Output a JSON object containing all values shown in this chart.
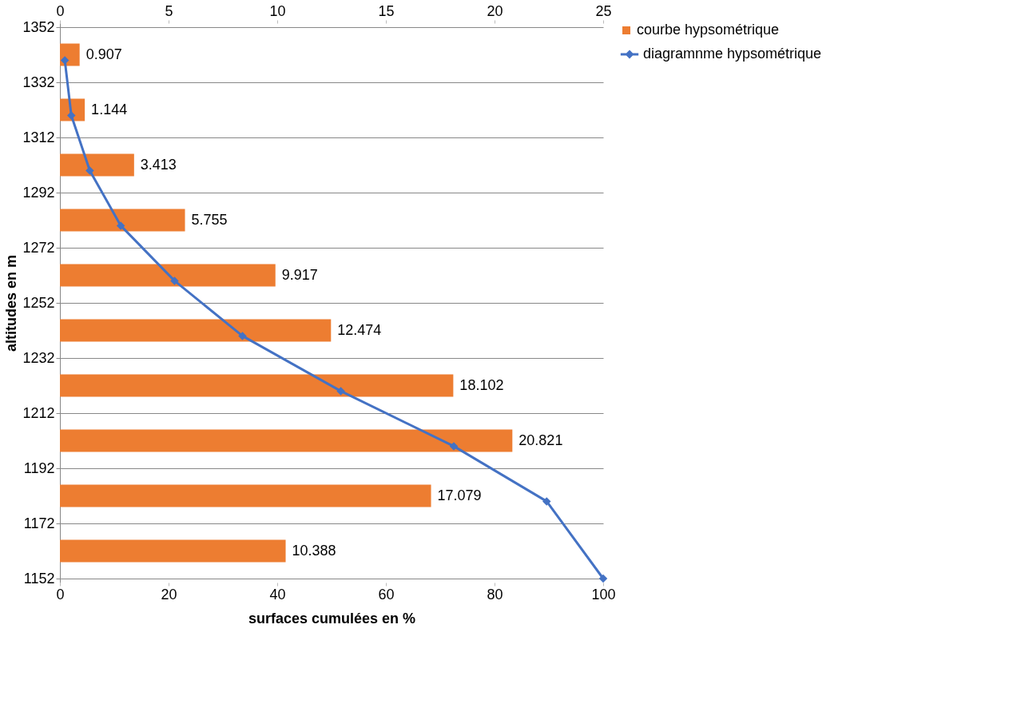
{
  "chart_data": {
    "type": "bar",
    "orientation": "horizontal",
    "xlabel": "surfaces cumulées en %",
    "ylabel": "altitudes en m",
    "series": [
      {
        "name": "courbe hypsométrique",
        "axis": "x2",
        "color": "#ed7d31",
        "x": [
          1342,
          1322,
          1302,
          1282,
          1262,
          1242,
          1222,
          1202,
          1182,
          1162
        ],
        "values": [
          0.907,
          1.144,
          3.413,
          5.755,
          9.917,
          12.474,
          18.102,
          20.821,
          17.079,
          10.388
        ],
        "value_labels": [
          "0.907",
          "1.144",
          "3.413",
          "5.755",
          "9.917",
          "12.474",
          "18.102",
          "20.821",
          "17.079",
          "10.388"
        ]
      },
      {
        "name": "diagramnme hypsométrique",
        "type": "line",
        "color": "#4472c4",
        "marker": "diamond",
        "x": [
          1340,
          1320,
          1300,
          1280,
          1260,
          1240,
          1220,
          1200,
          1180,
          1152
        ],
        "values": [
          0.9,
          2.1,
          5.5,
          11.2,
          21.1,
          33.6,
          51.7,
          72.5,
          89.6,
          100
        ]
      }
    ],
    "x2lim": [
      0,
      25
    ],
    "x2ticks": [
      0,
      5,
      10,
      15,
      20,
      25
    ],
    "xlim": [
      0,
      100
    ],
    "xticks": [
      0,
      20,
      40,
      60,
      80,
      100
    ],
    "ylim": [
      1152,
      1352
    ],
    "yticks": [
      1152,
      1172,
      1192,
      1212,
      1232,
      1252,
      1272,
      1292,
      1312,
      1332,
      1352
    ],
    "grid": "y",
    "legend": "right"
  }
}
